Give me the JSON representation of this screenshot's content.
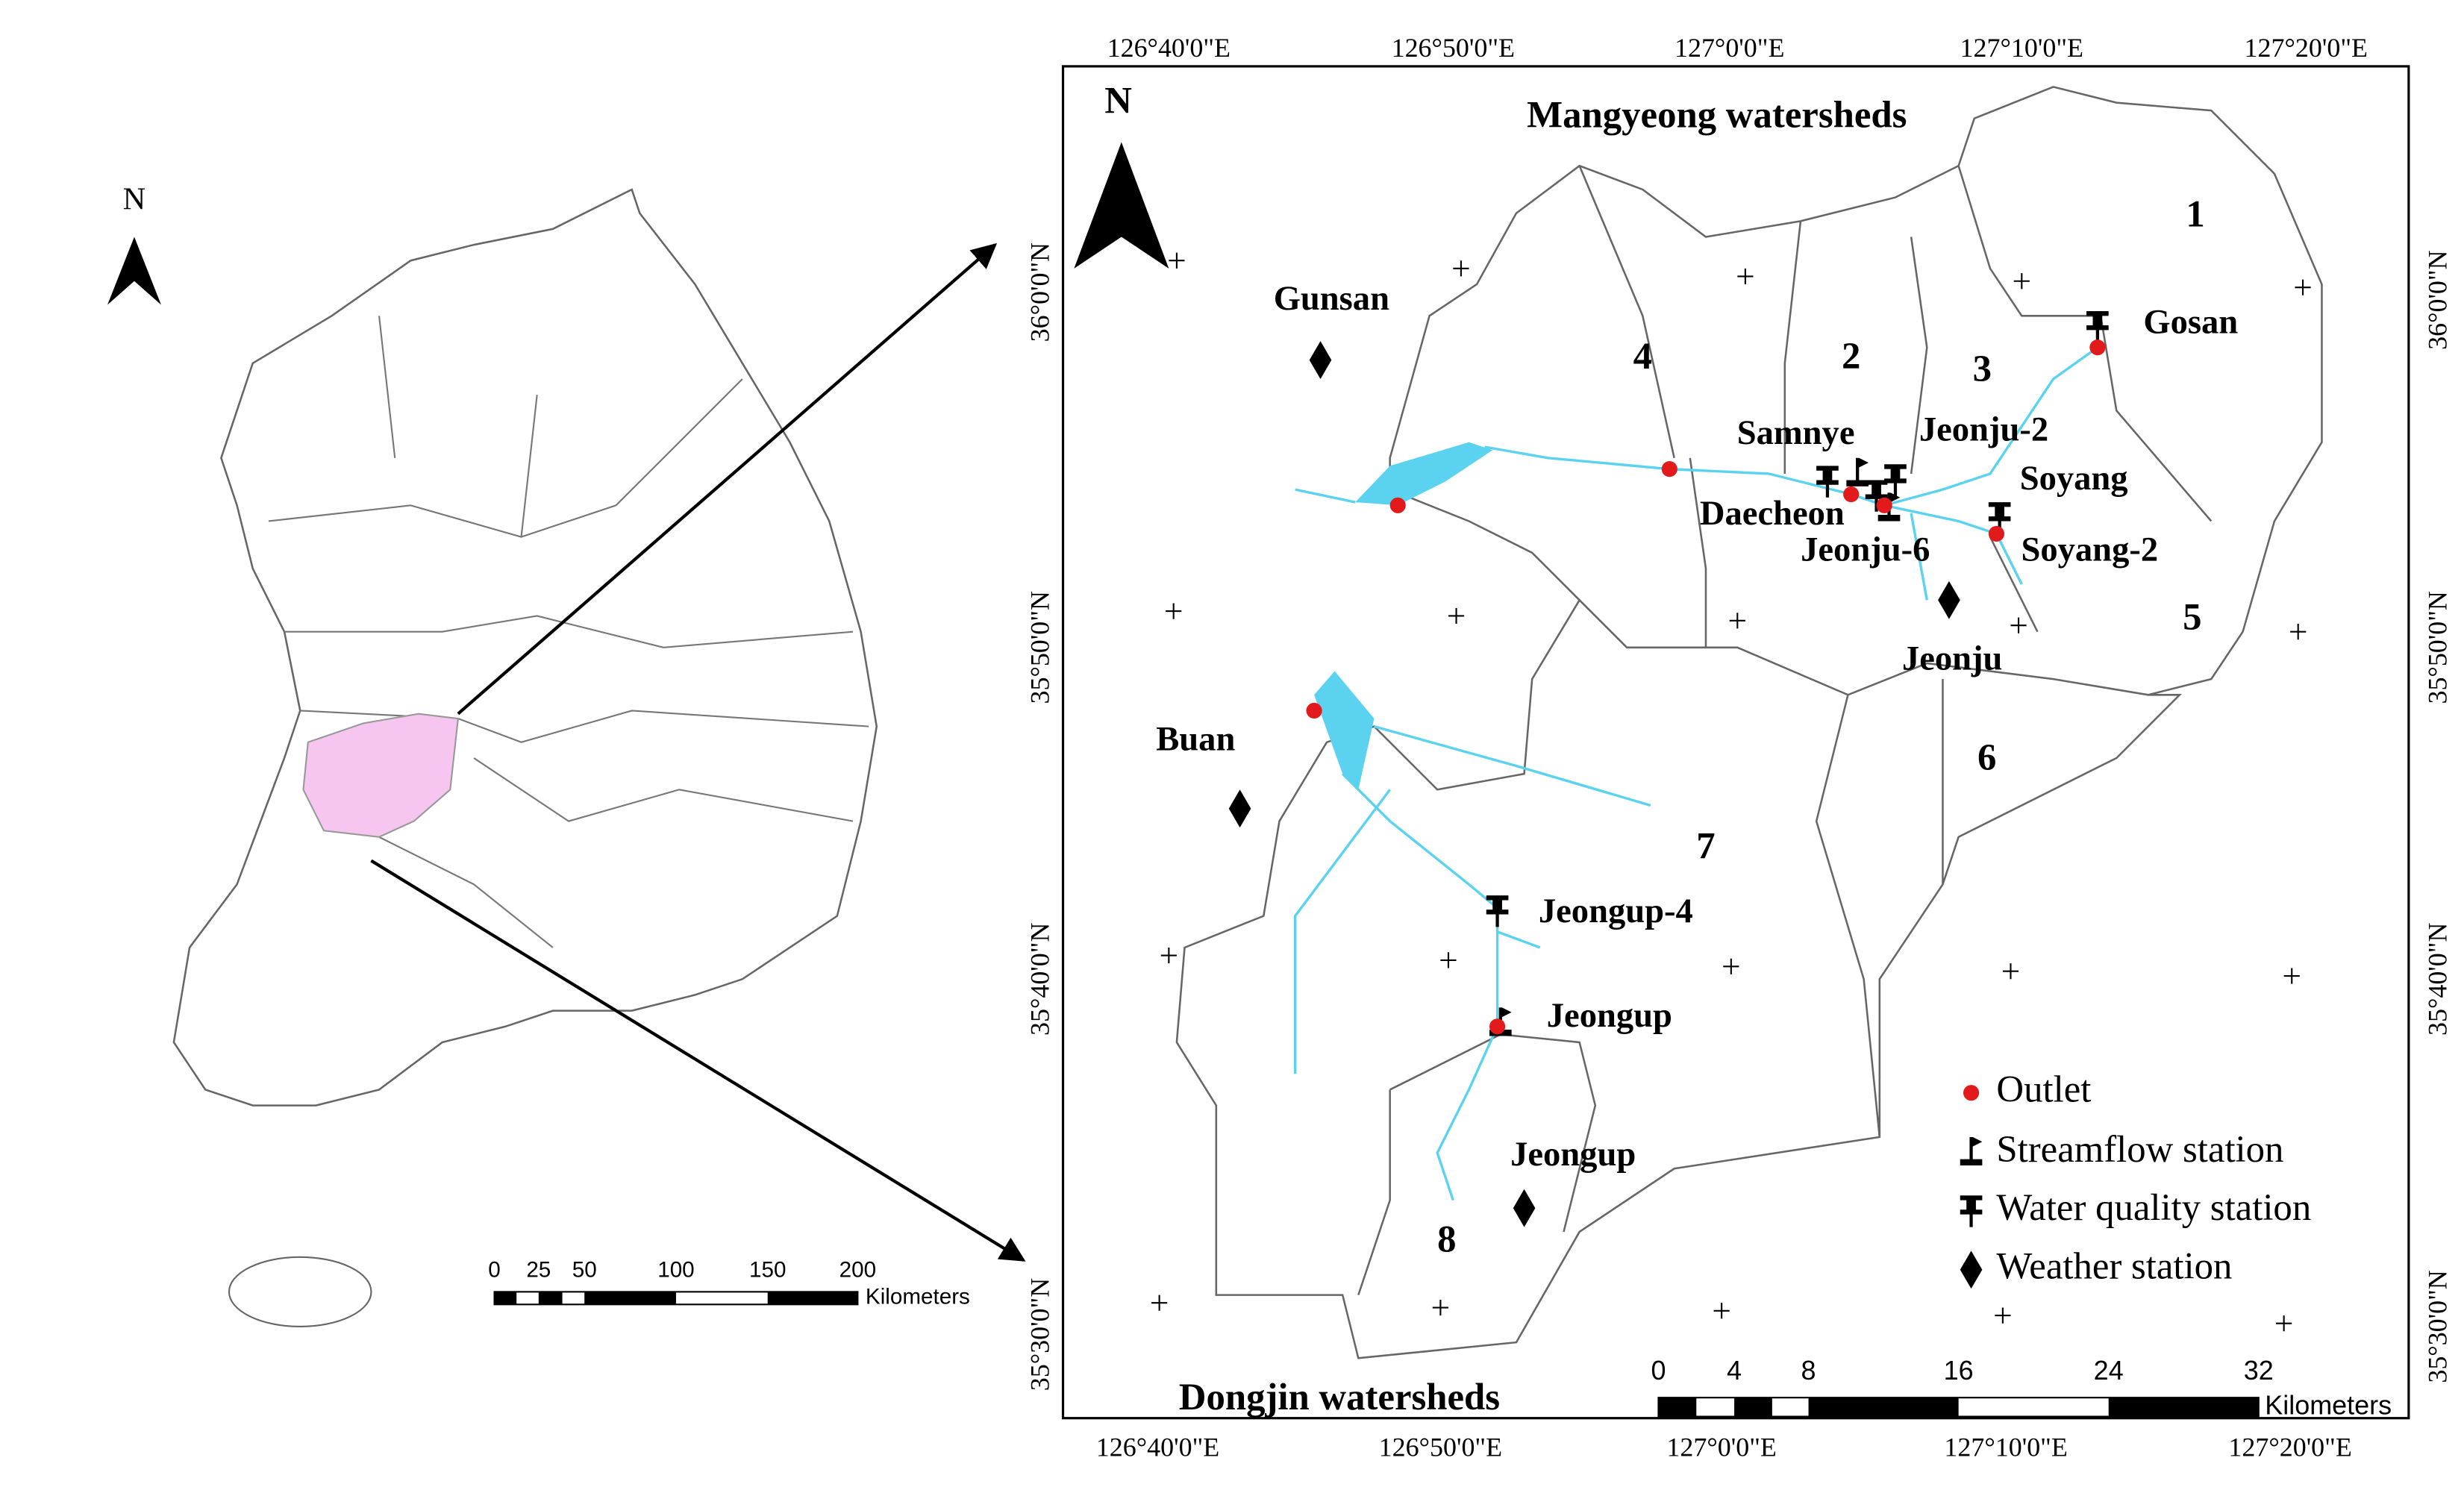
{
  "overview_map": {
    "north": "N",
    "scale_bar": {
      "ticks": [
        "0",
        "25",
        "50",
        "100",
        "150",
        "200"
      ],
      "unit": "Kilometers"
    }
  },
  "detail_map": {
    "north": "N",
    "top_labels": [
      "126°40'0\"E",
      "126°50'0\"E",
      "127°0'0\"E",
      "127°10'0\"E",
      "127°20'0\"E"
    ],
    "bottom_labels": [
      "126°40'0\"E",
      "126°50'0\"E",
      "127°0'0\"E",
      "127°10'0\"E",
      "127°20'0\"E"
    ],
    "left_labels": [
      "36°0'0\"N",
      "35°50'0\"N",
      "35°40'0\"N",
      "35°30'0\"N"
    ],
    "right_labels": [
      "36°0'0\"N",
      "35°50'0\"N",
      "35°40'0\"N",
      "35°30'0\"N"
    ],
    "region_labels": [
      "Mangyeong watersheds",
      "Dongjin watersheds"
    ],
    "subbasins": [
      "1",
      "2",
      "3",
      "4",
      "5",
      "6",
      "7",
      "8"
    ],
    "stations": [
      "Gosan",
      "Samnye",
      "Jeonju-2",
      "Soyang",
      "Daecheon",
      "Jeonju-6",
      "Soyang-2",
      "Jeonju",
      "Gunsan",
      "Buan",
      "Jeongup-4",
      "Jeongup",
      "Jeongup"
    ],
    "legend": [
      "Outlet",
      "Streamflow station",
      "Water quality station",
      "Weather station"
    ],
    "scale_bar": {
      "ticks": [
        "0",
        "4",
        "8",
        "16",
        "24",
        "32"
      ],
      "unit": "Kilometers"
    }
  }
}
